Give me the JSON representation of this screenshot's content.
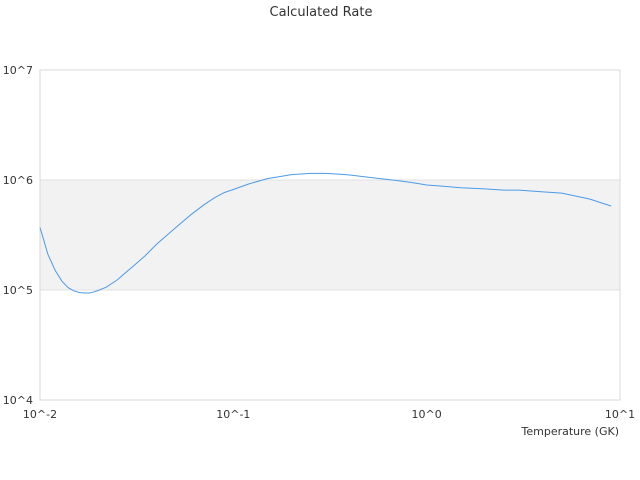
{
  "chart_data": {
    "type": "line",
    "title": "Calculated Rate",
    "xlabel": "Temperature (GK)",
    "ylabel": "",
    "xscale": "log",
    "yscale": "log",
    "xlim": [
      0.01,
      10
    ],
    "ylim": [
      10000,
      10000000
    ],
    "x_tick_labels": [
      "10^-2",
      "10^-1",
      "10^0",
      "10^1"
    ],
    "y_tick_labels": [
      "10^4",
      "10^5",
      "10^6",
      "10^7"
    ],
    "grid": true,
    "alternating_band_color": "#f2f2f2",
    "line_color": "#4c9be8",
    "series": [
      {
        "name": "",
        "x": [
          0.01,
          0.011,
          0.012,
          0.013,
          0.014,
          0.015,
          0.016,
          0.017,
          0.018,
          0.019,
          0.02,
          0.022,
          0.025,
          0.03,
          0.035,
          0.04,
          0.05,
          0.06,
          0.07,
          0.08,
          0.09,
          0.1,
          0.12,
          0.15,
          0.2,
          0.25,
          0.3,
          0.35,
          0.4,
          0.5,
          0.6,
          0.7,
          0.8,
          0.9,
          1.0,
          1.2,
          1.5,
          2.0,
          2.5,
          3.0,
          4.0,
          5.0,
          6.0,
          7.0,
          8.0,
          9.0
        ],
        "values": [
          370000,
          210000,
          150000,
          120000,
          105000,
          98000,
          95000,
          94000,
          94000,
          96000,
          99000,
          106000,
          123000,
          162000,
          205000,
          260000,
          365000,
          480000,
          590000,
          690000,
          770000,
          820000,
          920000,
          1030000,
          1120000,
          1150000,
          1150000,
          1130000,
          1110000,
          1060000,
          1020000,
          990000,
          960000,
          930000,
          900000,
          880000,
          850000,
          830000,
          810000,
          810000,
          780000,
          760000,
          710000,
          670000,
          620000,
          580000
        ]
      }
    ]
  }
}
